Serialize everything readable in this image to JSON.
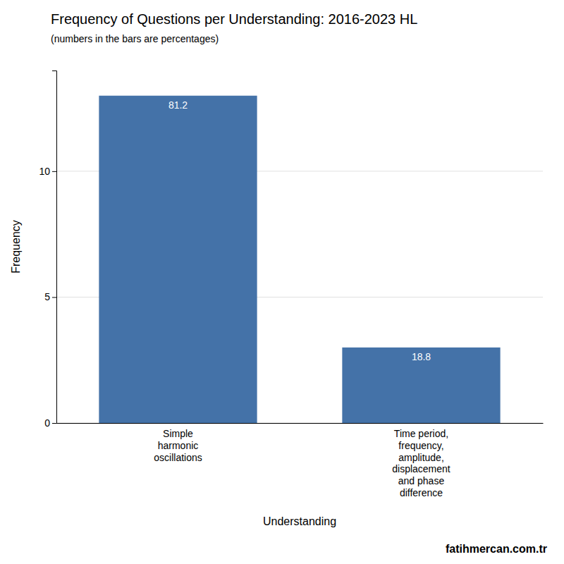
{
  "chart_data": {
    "type": "bar",
    "title": "Frequency of Questions per Understanding: 2016-2023 HL",
    "subtitle": "(numbers in the bars are percentages)",
    "xlabel": "Understanding",
    "ylabel": "Frequency",
    "annotations": [
      "fatihmercan.com.tr"
    ],
    "categories": [
      "Simple\nharmonic\noscillations",
      "Time period,\nfrequency,\namplitude,\ndisplacement\nand phase\ndifference"
    ],
    "values": [
      13,
      3
    ],
    "percentages": [
      81.2,
      18.8
    ],
    "color": "#4472a8",
    "ylim": [
      0,
      14
    ],
    "yticks": [
      0,
      5,
      10
    ],
    "grid": true
  }
}
